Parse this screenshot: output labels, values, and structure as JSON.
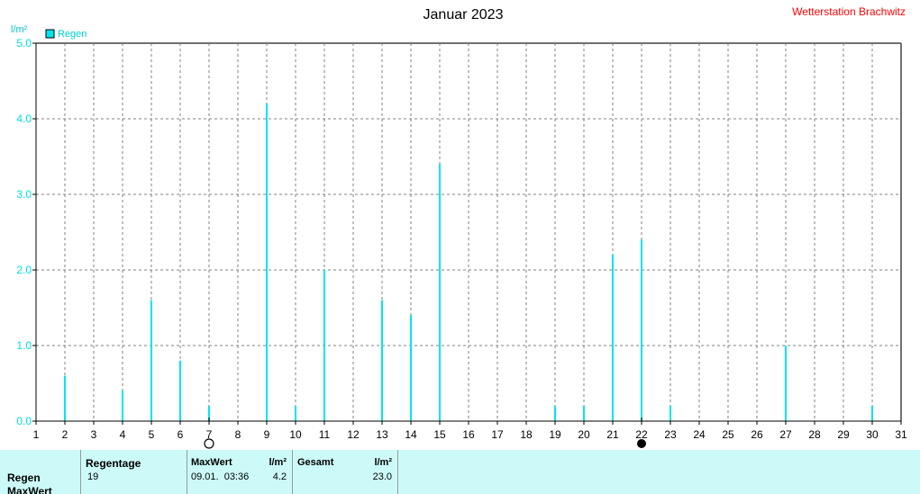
{
  "header": {
    "title": "Januar 2023",
    "station": "Wetterstation Brachwitz"
  },
  "chart_data": {
    "type": "bar",
    "title": "Januar 2023",
    "ylabel": "l/m²",
    "ylim": [
      0,
      5
    ],
    "yticks": [
      "0.0",
      "1.0",
      "2.0",
      "3.0",
      "4.0",
      "5.0"
    ],
    "xlim": [
      1,
      31
    ],
    "categories": [
      "1",
      "2",
      "3",
      "4",
      "5",
      "6",
      "7",
      "8",
      "9",
      "10",
      "11",
      "12",
      "13",
      "14",
      "15",
      "16",
      "17",
      "18",
      "19",
      "20",
      "21",
      "22",
      "23",
      "24",
      "25",
      "26",
      "27",
      "28",
      "29",
      "30",
      "31"
    ],
    "grid": true,
    "legend": "top-left",
    "series": [
      {
        "name": "Regen",
        "color": "#00e5ee",
        "values": [
          0,
          0.6,
          0,
          0.4,
          1.6,
          0.8,
          0.2,
          0,
          4.2,
          0.2,
          2.0,
          0,
          1.6,
          1.4,
          3.4,
          0,
          0,
          0,
          0.2,
          0.2,
          2.2,
          2.4,
          0.2,
          0,
          0,
          0,
          1.0,
          0,
          0,
          0.2,
          0.2
        ]
      }
    ],
    "moon_markers": [
      {
        "day": 7,
        "phase": "full-moon-icon"
      },
      {
        "day": 22,
        "phase": "new-moon-icon"
      }
    ]
  },
  "stats": {
    "row1_label": "Regen",
    "row2_label": "MaxWert",
    "regentage_header": "Regentage",
    "regentage_value": "19",
    "maxwert_header": "MaxWert",
    "maxwert_unit": "l/m²",
    "maxwert_time": "09.01.  03:36",
    "maxwert_value": "4.2",
    "gesamt_header": "Gesamt",
    "gesamt_unit": "l/m²",
    "gesamt_value": "23.0"
  }
}
